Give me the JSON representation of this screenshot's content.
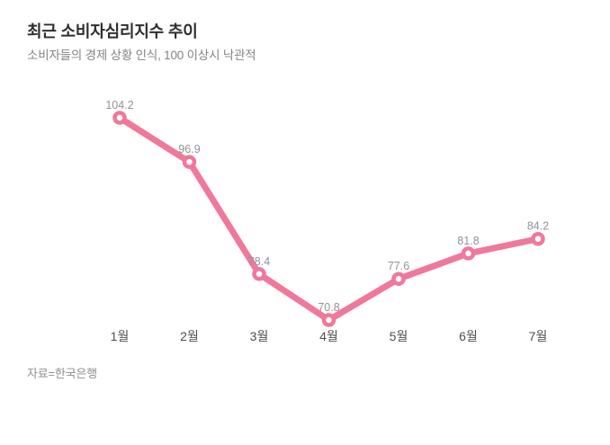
{
  "header": {
    "title": "최근 소비자심리지수 추이",
    "subtitle": "소비자들의 경제 상황 인식, 100 이상시 낙관적"
  },
  "footer": {
    "source": "자료=한국은행"
  },
  "chart_data": {
    "type": "line",
    "title": "최근 소비자심리지수 추이",
    "subtitle": "소비자들의 경제 상황 인식, 100 이상시 낙관적",
    "source": "자료=한국은행",
    "categories": [
      "1월",
      "2월",
      "3월",
      "4월",
      "5월",
      "6월",
      "7월"
    ],
    "values": [
      104.2,
      96.9,
      78.4,
      70.8,
      77.6,
      81.8,
      84.2
    ],
    "xlabel": "",
    "ylabel": "",
    "grid": false,
    "legend": false,
    "axes_visible": false,
    "data_labels": true,
    "marker": "open-circle",
    "line_color": "#f0789b",
    "marker_fill": "#ffffff",
    "label_color": "#939393",
    "tick_label_color": "#4f4f4f"
  }
}
